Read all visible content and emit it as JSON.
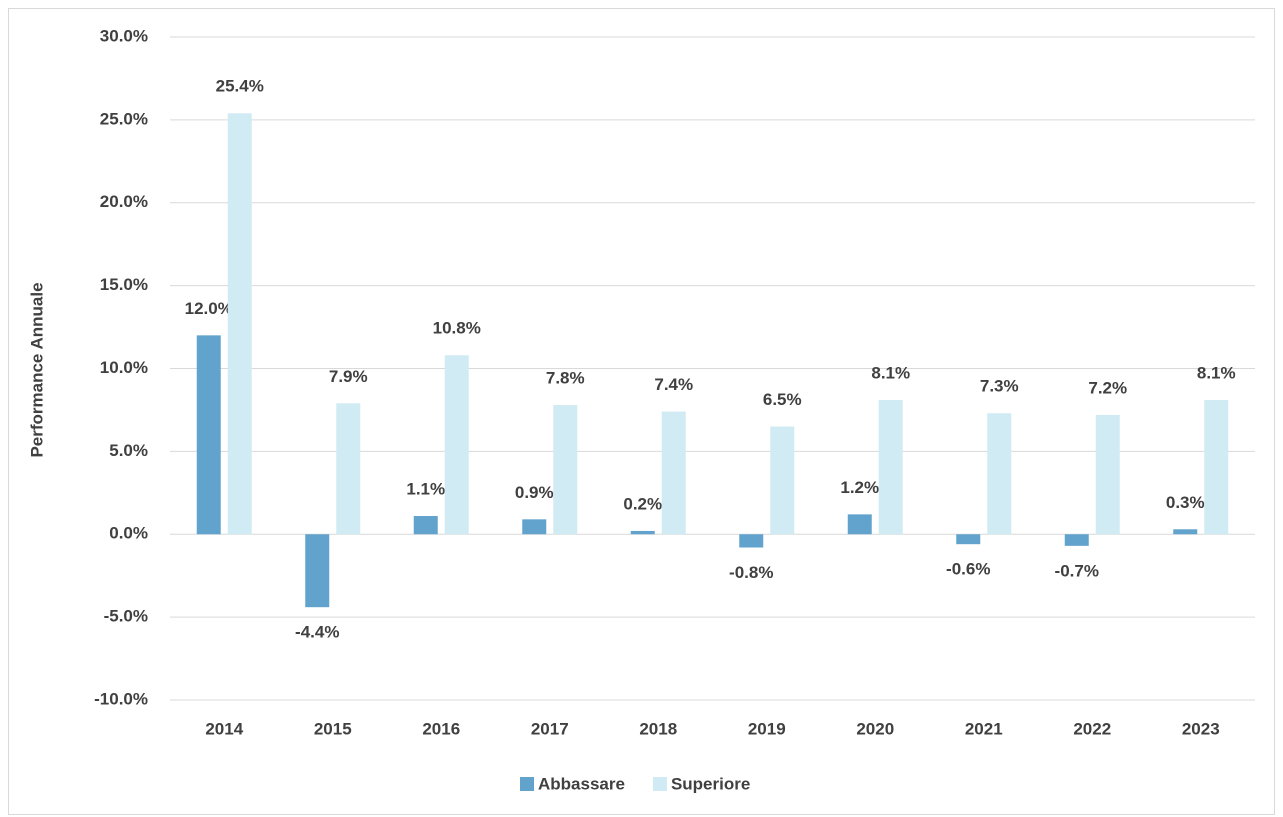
{
  "chart_data": {
    "type": "bar",
    "y_axis_label": "Performance Annuale",
    "categories": [
      "2014",
      "2015",
      "2016",
      "2017",
      "2018",
      "2019",
      "2020",
      "2021",
      "2022",
      "2023"
    ],
    "series": [
      {
        "name": "Abbassare",
        "color": "#62a3cd",
        "values": [
          12.0,
          -4.4,
          1.1,
          0.9,
          0.2,
          -0.8,
          1.2,
          -0.6,
          -0.7,
          0.3
        ],
        "value_labels": [
          "12.0%",
          "-4.4%",
          "1.1%",
          "0.9%",
          "0.2%",
          "-0.8%",
          "1.2%",
          "-0.6%",
          "-0.7%",
          "0.3%"
        ]
      },
      {
        "name": "Superiore",
        "color": "#d0ebf3",
        "values": [
          25.4,
          7.9,
          10.8,
          7.8,
          7.4,
          6.5,
          8.1,
          7.3,
          7.2,
          8.1
        ],
        "value_labels": [
          "25.4%",
          "7.9%",
          "10.8%",
          "7.8%",
          "7.4%",
          "6.5%",
          "8.1%",
          "7.3%",
          "7.2%",
          "8.1%"
        ]
      }
    ],
    "ylim": [
      -10,
      30
    ],
    "yticks": [
      {
        "value": -10,
        "label": "-10.0%"
      },
      {
        "value": -5,
        "label": "-5.0%"
      },
      {
        "value": 0,
        "label": "0.0%"
      },
      {
        "value": 5,
        "label": "5.0%"
      },
      {
        "value": 10,
        "label": "10.0%"
      },
      {
        "value": 15,
        "label": "15.0%"
      },
      {
        "value": 20,
        "label": "20.0%"
      },
      {
        "value": 25,
        "label": "25.0%"
      },
      {
        "value": 30,
        "label": "30.0%"
      }
    ],
    "grid": true,
    "legend": "bottom"
  }
}
